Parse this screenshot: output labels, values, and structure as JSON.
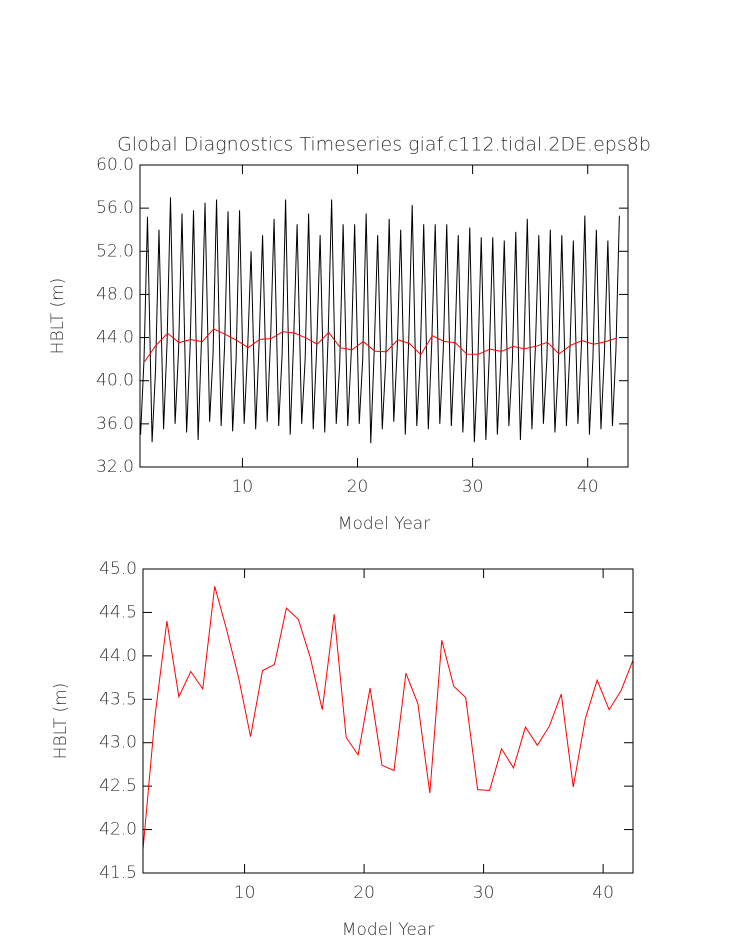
{
  "chart_data": [
    {
      "type": "line",
      "title": "Global Diagnostics Timeseries giaf.c112.tidal.2DE.eps8b",
      "x_label": "Model Year",
      "y_label": "HBLT (m)",
      "xlim": [
        1.1,
        43.5
      ],
      "xticks": [
        10,
        20,
        30,
        40
      ],
      "ylim": [
        32,
        60
      ],
      "yticks": [
        {
          "value": 32,
          "label": "32.0"
        },
        {
          "value": 36,
          "label": "36.0"
        },
        {
          "value": 40,
          "label": "40.0"
        },
        {
          "value": 44,
          "label": "44.0"
        },
        {
          "value": 48,
          "label": "48.0"
        },
        {
          "value": 52,
          "label": "52.0"
        },
        {
          "value": 56,
          "label": "56.0"
        },
        {
          "value": 60,
          "label": "60.0"
        }
      ],
      "series": [
        {
          "color": "#000000",
          "x": [
            1.15,
            1.45,
            1.75,
            2.15,
            2.45,
            2.75,
            3.15,
            3.45,
            3.75,
            4.15,
            4.45,
            4.75,
            5.15,
            5.45,
            5.75,
            6.15,
            6.45,
            6.75,
            7.15,
            7.45,
            7.75,
            8.15,
            8.45,
            8.75,
            9.15,
            9.45,
            9.75,
            10.15,
            10.45,
            10.75,
            11.15,
            11.45,
            11.75,
            12.15,
            12.45,
            12.75,
            13.15,
            13.45,
            13.75,
            14.15,
            14.45,
            14.75,
            15.15,
            15.45,
            15.75,
            16.15,
            16.45,
            16.75,
            17.15,
            17.45,
            17.75,
            18.15,
            18.45,
            18.75,
            19.15,
            19.45,
            19.75,
            20.15,
            20.45,
            20.75,
            21.15,
            21.45,
            21.75,
            22.15,
            22.45,
            22.75,
            23.15,
            23.45,
            23.75,
            24.15,
            24.45,
            24.75,
            25.15,
            25.45,
            25.75,
            26.15,
            26.45,
            26.75,
            27.15,
            27.45,
            27.75,
            28.15,
            28.45,
            28.75,
            29.15,
            29.45,
            29.75,
            30.15,
            30.45,
            30.75,
            31.15,
            31.45,
            31.75,
            32.15,
            32.45,
            32.75,
            33.15,
            33.45,
            33.75,
            34.15,
            34.45,
            34.75,
            35.15,
            35.45,
            35.75,
            36.15,
            36.45,
            36.75,
            37.15,
            37.45,
            37.75,
            38.15,
            38.45,
            38.75,
            39.15,
            39.45,
            39.75,
            40.15,
            40.45,
            40.75,
            41.15,
            41.45,
            41.75,
            42.15,
            42.45,
            42.75
          ],
          "values": [
            35.0,
            42.0,
            55.2,
            34.3,
            41.0,
            54.0,
            35.5,
            43.5,
            57.0,
            36.0,
            42.8,
            55.5,
            35.2,
            43.0,
            55.8,
            34.5,
            44.0,
            56.5,
            36.2,
            42.5,
            56.8,
            35.8,
            43.2,
            55.7,
            35.3,
            42.0,
            55.8,
            36.0,
            42.8,
            52.0,
            35.5,
            43.5,
            53.5,
            36.2,
            44.0,
            55.0,
            35.8,
            42.5,
            56.8,
            35.0,
            43.8,
            54.5,
            36.0,
            42.0,
            55.5,
            35.5,
            43.0,
            53.5,
            35.2,
            44.2,
            56.8,
            36.0,
            41.5,
            54.5,
            35.8,
            42.5,
            54.5,
            36.0,
            42.0,
            55.5,
            34.2,
            42.8,
            53.5,
            35.5,
            41.8,
            55.0,
            36.2,
            43.0,
            54.0,
            35.0,
            43.8,
            56.3,
            35.8,
            42.0,
            54.5,
            35.5,
            43.5,
            54.5,
            36.0,
            42.8,
            54.5,
            35.8,
            43.0,
            53.5,
            35.2,
            42.2,
            54.2,
            34.3,
            41.5,
            53.3,
            34.5,
            42.5,
            53.3,
            35.0,
            42.0,
            53.0,
            35.8,
            41.8,
            53.8,
            34.5,
            42.5,
            55.0,
            35.5,
            43.0,
            53.5,
            36.0,
            42.0,
            54.0,
            35.2,
            41.5,
            53.5,
            35.8,
            42.8,
            53.0,
            36.0,
            43.2,
            55.3,
            35.0,
            42.0,
            54.0,
            35.5,
            42.5,
            53.0,
            35.8,
            42.8,
            55.3
          ]
        },
        {
          "color": "#ff0000",
          "x": [
            1.5,
            2.5,
            3.5,
            4.5,
            5.5,
            6.5,
            7.5,
            8.5,
            9.5,
            10.5,
            11.5,
            12.5,
            13.5,
            14.5,
            15.5,
            16.5,
            17.5,
            18.5,
            19.5,
            20.5,
            21.5,
            22.5,
            23.5,
            24.5,
            25.5,
            26.5,
            27.5,
            28.5,
            29.5,
            30.5,
            31.5,
            32.5,
            33.5,
            34.5,
            35.5,
            36.5,
            37.5,
            38.5,
            39.5,
            40.5,
            41.5,
            42.5
          ],
          "values": [
            41.77,
            43.3,
            44.4,
            43.53,
            43.82,
            43.62,
            44.8,
            44.3,
            43.75,
            43.07,
            43.83,
            43.9,
            44.55,
            44.42,
            43.98,
            43.38,
            44.48,
            43.06,
            42.86,
            43.63,
            42.74,
            42.68,
            43.8,
            43.45,
            42.42,
            44.18,
            43.65,
            43.52,
            42.46,
            42.45,
            42.93,
            42.71,
            43.18,
            42.97,
            43.19,
            43.56,
            42.49,
            43.27,
            43.72,
            43.38,
            43.6,
            43.95
          ]
        }
      ]
    },
    {
      "type": "line",
      "x_label": "Model Year",
      "y_label": "HBLT (m)",
      "xlim": [
        1.5,
        42.5
      ],
      "xticks": [
        10,
        20,
        30,
        40
      ],
      "ylim": [
        41.5,
        45
      ],
      "yticks": [
        41.5,
        {
          "value": 42,
          "label": "42.0"
        },
        42.5,
        {
          "value": 43,
          "label": "43.0"
        },
        43.5,
        {
          "value": 44,
          "label": "44.0"
        },
        44.5,
        {
          "value": 45,
          "label": "45.0"
        }
      ],
      "series": [
        {
          "color": "#ff0000",
          "x": [
            1.5,
            2.5,
            3.5,
            4.5,
            5.5,
            6.5,
            7.5,
            8.5,
            9.5,
            10.5,
            11.5,
            12.5,
            13.5,
            14.5,
            15.5,
            16.5,
            17.5,
            18.5,
            19.5,
            20.5,
            21.5,
            22.5,
            23.5,
            24.5,
            25.5,
            26.5,
            27.5,
            28.5,
            29.5,
            30.5,
            31.5,
            32.5,
            33.5,
            34.5,
            35.5,
            36.5,
            37.5,
            38.5,
            39.5,
            40.5,
            41.5,
            42.5
          ],
          "values": [
            41.77,
            43.3,
            44.4,
            43.53,
            43.82,
            43.62,
            44.8,
            44.3,
            43.75,
            43.07,
            43.83,
            43.9,
            44.55,
            44.42,
            43.98,
            43.38,
            44.48,
            43.06,
            42.86,
            43.63,
            42.74,
            42.68,
            43.8,
            43.45,
            42.42,
            44.18,
            43.65,
            43.52,
            42.46,
            42.45,
            42.93,
            42.71,
            43.18,
            42.97,
            43.19,
            43.56,
            42.49,
            43.27,
            43.72,
            43.38,
            43.6,
            43.95
          ]
        }
      ]
    }
  ]
}
